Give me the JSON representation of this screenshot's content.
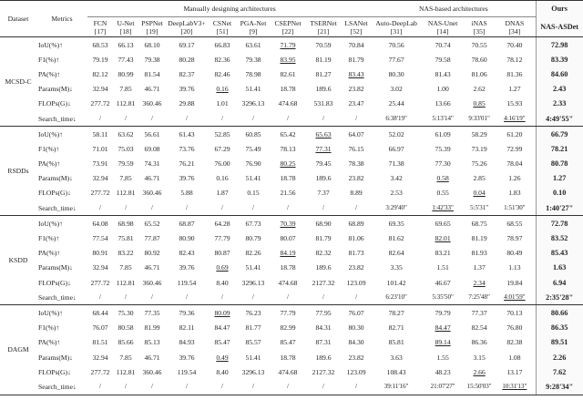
{
  "header": {
    "dataset": "Dataset",
    "metrics": "Metrics",
    "groups": [
      {
        "label": "Manually designing architectures",
        "methods": [
          {
            "name": "FCN",
            "ref": "[17]"
          },
          {
            "name": "U-Net",
            "ref": "[18]"
          },
          {
            "name": "PSPNet",
            "ref": "[19]"
          },
          {
            "name": "DeepLabV3+",
            "ref": "[20]"
          },
          {
            "name": "CSNet",
            "ref": "[51]"
          },
          {
            "name": "PGA-Net",
            "ref": "[9]"
          },
          {
            "name": "CSEPNet",
            "ref": "[22]"
          },
          {
            "name": "TSERNet",
            "ref": "[21]"
          },
          {
            "name": "LSANet",
            "ref": "[52]"
          }
        ]
      },
      {
        "label": "NAS-based architectures",
        "methods": [
          {
            "name": "Auto-DeepLab",
            "ref": "[31]"
          },
          {
            "name": "NAS-Unet",
            "ref": "[14]"
          },
          {
            "name": "iNAS",
            "ref": "[35]"
          },
          {
            "name": "DNAS",
            "ref": "[34]"
          }
        ]
      },
      {
        "label": "Ours",
        "methods": [
          {
            "name": "NAS-ASDet"
          }
        ]
      }
    ]
  },
  "table": {
    "groups": [
      {
        "dataset": "MCSD-C",
        "rows": [
          {
            "metric": "IoU(%)↑",
            "cells": [
              "68.53",
              "66.13",
              "68.10",
              "69.17",
              "66.83",
              "63.61",
              "71.79",
              "70.59",
              "70.84",
              "70.56",
              "70.74",
              "70.55",
              "70.40",
              "72.98"
            ],
            "underline": [
              6
            ]
          },
          {
            "metric": "F1(%)↑",
            "cells": [
              "79.19",
              "77.43",
              "79.38",
              "80.28",
              "82.36",
              "79.38",
              "83.95",
              "81.19",
              "81.79",
              "77.67",
              "79.58",
              "78.60",
              "78.12",
              "83.39"
            ],
            "underline": [
              6
            ]
          },
          {
            "metric": "PA(%)↑",
            "cells": [
              "82.12",
              "80.99",
              "81.54",
              "82.37",
              "82.46",
              "78.98",
              "82.61",
              "81.27",
              "83.43",
              "80.30",
              "81.43",
              "81.06",
              "81.36",
              "84.60"
            ],
            "underline": [
              8
            ]
          },
          {
            "metric": "Params(M)↓",
            "cells": [
              "32.94",
              "7.85",
              "46.71",
              "39.76",
              "0.16",
              "51.41",
              "18.78",
              "189.6",
              "23.82",
              "3.02",
              "1.00",
              "2.62",
              "1.27",
              "2.43"
            ],
            "underline": [
              4
            ]
          },
          {
            "metric": "FLOPs(G)↓",
            "cells": [
              "277.72",
              "112.81",
              "360.46",
              "29.88",
              "1.01",
              "3296.13",
              "474.68",
              "531.83",
              "23.47",
              "25.44",
              "13.66",
              "0.85",
              "15.93",
              "2.33"
            ],
            "underline": [
              11
            ]
          },
          {
            "metric": "Search_time↓",
            "cells": [
              "/",
              "/",
              "/",
              "/",
              "/",
              "/",
              "/",
              "/",
              "/",
              "6:38'19\"",
              "5:13'14\"",
              "9:33'01\"",
              "4:16'19\"",
              "4:49'55\""
            ],
            "underline": [
              12
            ]
          }
        ]
      },
      {
        "dataset": "RSDDs",
        "rows": [
          {
            "metric": "IoU(%)↑",
            "cells": [
              "58.11",
              "63.62",
              "56.61",
              "61.43",
              "52.85",
              "60.85",
              "65.42",
              "65.63",
              "64.07",
              "52.02",
              "61.09",
              "58.29",
              "61.20",
              "66.79"
            ],
            "underline": [
              7
            ]
          },
          {
            "metric": "F1(%)↑",
            "cells": [
              "71.01",
              "75.03",
              "69.08",
              "73.76",
              "67.29",
              "75.49",
              "78.13",
              "77.31",
              "76.15",
              "66.97",
              "75.39",
              "73.19",
              "72.99",
              "78.21"
            ],
            "underline": [
              7
            ]
          },
          {
            "metric": "PA(%)↑",
            "cells": [
              "73.91",
              "79.59",
              "74.31",
              "76.21",
              "76.00",
              "76.90",
              "80.25",
              "79.45",
              "78.38",
              "71.38",
              "77.30",
              "75.26",
              "78.04",
              "80.78"
            ],
            "underline": [
              6
            ]
          },
          {
            "metric": "Params(M)↓",
            "cells": [
              "32.94",
              "7.85",
              "46.71",
              "39.76",
              "0.16",
              "51.41",
              "18.78",
              "189.6",
              "23.82",
              "3.42",
              "0.58",
              "2.85",
              "1.26",
              "1.27"
            ],
            "underline": [
              10
            ]
          },
          {
            "metric": "FLOPs(G)↓",
            "cells": [
              "277.72",
              "112.81",
              "360.46",
              "5.88",
              "1.87",
              "0.15",
              "21.56",
              "7.37",
              "8.89",
              "2.53",
              "0.55",
              "0.04",
              "1.83",
              "0.10"
            ],
            "underline": [
              11
            ]
          },
          {
            "metric": "Search_time↓",
            "cells": [
              "/",
              "/",
              "/",
              "/",
              "/",
              "/",
              "/",
              "/",
              "/",
              "3:29'40\"",
              "1:42'33\"",
              "5:5'31\"",
              "1:51'30\"",
              "1:40'27\""
            ],
            "underline": [
              10
            ]
          }
        ]
      },
      {
        "dataset": "KSDD",
        "rows": [
          {
            "metric": "IoU(%)↑",
            "cells": [
              "64.08",
              "68.98",
              "65.52",
              "68.87",
              "64.28",
              "67.73",
              "70.39",
              "68.90",
              "68.89",
              "69.35",
              "69.65",
              "68.75",
              "68.55",
              "72.78"
            ],
            "underline": [
              6
            ]
          },
          {
            "metric": "F1(%)↑",
            "cells": [
              "77.54",
              "75.81",
              "77.87",
              "80.90",
              "77.79",
              "80.79",
              "80.07",
              "81.79",
              "81.06",
              "81.62",
              "82.01",
              "81.19",
              "78.97",
              "83.52"
            ],
            "underline": [
              10
            ]
          },
          {
            "metric": "PA(%)↑",
            "cells": [
              "80.91",
              "83.22",
              "80.92",
              "82.43",
              "80.87",
              "82.26",
              "84.19",
              "82.32",
              "81.73",
              "82.64",
              "83.21",
              "81.93",
              "80.49",
              "85.43"
            ],
            "underline": [
              6
            ]
          },
          {
            "metric": "Params(M)↓",
            "cells": [
              "32.94",
              "7.85",
              "46.71",
              "39.76",
              "0.69",
              "51.41",
              "18.78",
              "189.6",
              "23.82",
              "3.35",
              "1.51",
              "1.37",
              "1.13",
              "1.63"
            ],
            "underline": [
              4
            ]
          },
          {
            "metric": "FLOPs(G)↓",
            "cells": [
              "277.72",
              "112.81",
              "360.46",
              "119.54",
              "8.40",
              "3296.13",
              "474.68",
              "2127.32",
              "123.09",
              "101.42",
              "46.67",
              "2.34",
              "19.84",
              "6.94"
            ],
            "underline": [
              11
            ]
          },
          {
            "metric": "Search_time↓",
            "cells": [
              "/",
              "/",
              "/",
              "/",
              "/",
              "/",
              "/",
              "/",
              "/",
              "6:23'10\"",
              "5:35'50\"",
              "7:25'48\"",
              "4:01'59\"",
              "2:35'28\""
            ],
            "underline": [
              12
            ]
          }
        ]
      },
      {
        "dataset": "DAGM",
        "rows": [
          {
            "metric": "IoU(%)↑",
            "cells": [
              "68.44",
              "75.30",
              "77.35",
              "79.36",
              "80.09",
              "76.23",
              "77.79",
              "77.95",
              "76.07",
              "78.27",
              "79.79",
              "77.37",
              "70.13",
              "80.66"
            ],
            "underline": [
              4
            ]
          },
          {
            "metric": "F1(%)↑",
            "cells": [
              "76.07",
              "80.58",
              "81.99",
              "82.11",
              "84.47",
              "81.77",
              "82.99",
              "84.31",
              "80.30",
              "82.71",
              "84.47",
              "82.54",
              "76.80",
              "86.35"
            ],
            "underline": [
              10
            ]
          },
          {
            "metric": "PA(%)↑",
            "cells": [
              "81.51",
              "85.66",
              "85.13",
              "84.93",
              "85.47",
              "85.57",
              "85.47",
              "87.31",
              "84.30",
              "85.81",
              "89.14",
              "86.36",
              "82.38",
              "89.51"
            ],
            "underline": [
              10
            ]
          },
          {
            "metric": "Params(M)↓",
            "cells": [
              "32.94",
              "7.85",
              "46.71",
              "39.76",
              "0.49",
              "51.41",
              "18.78",
              "189.6",
              "23.82",
              "3.63",
              "1.55",
              "3.15",
              "1.08",
              "2.26"
            ],
            "underline": [
              4
            ]
          },
          {
            "metric": "FLOPs(G)↓",
            "cells": [
              "277.72",
              "112.81",
              "360.46",
              "119.54",
              "8.40",
              "3296.13",
              "474.68",
              "2127.32",
              "123.09",
              "108.43",
              "48.23",
              "2.66",
              "13.17",
              "7.62"
            ],
            "underline": [
              11
            ]
          },
          {
            "metric": "Search_time↓",
            "cells": [
              "/",
              "/",
              "/",
              "/",
              "/",
              "/",
              "/",
              "/",
              "/",
              "39:11'16\"",
              "21:07'27\"",
              "15:50'03\"",
              "10:31'13\"",
              "9:28'34\""
            ],
            "underline": [
              12
            ]
          }
        ]
      }
    ]
  }
}
